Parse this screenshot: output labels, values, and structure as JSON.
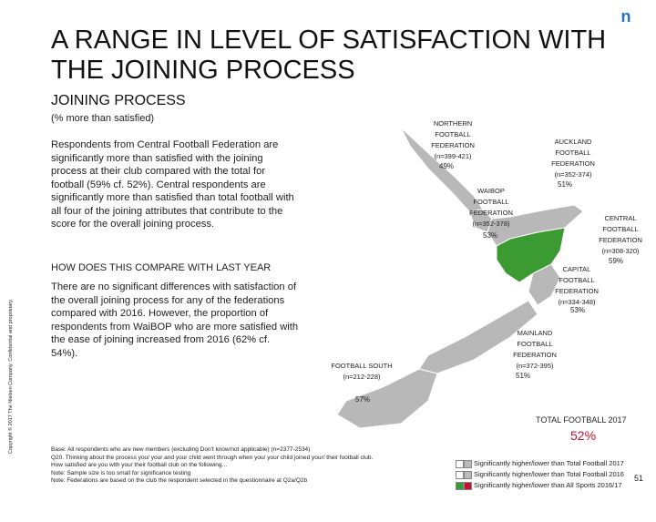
{
  "header": {
    "title": "A RANGE IN LEVEL OF SATISFACTION WITH THE JOINING PROCESS",
    "logo": "n"
  },
  "section": {
    "title": "JOINING PROCESS",
    "subtitle": "(% more than satisfied)",
    "summary": "Respondents from Central Football Federation are significantly more than satisfied with the joining process at their club compared with the total for football (59% cf. 52%). Central respondents are significantly more than satisfied than total football with all four of the joining attributes that contribute to the score for the overall joining process.",
    "compare_heading": "HOW DOES THIS COMPARE WITH LAST YEAR",
    "compare_text": "There are no significant differences with satisfaction of the overall joining process for any of the federations compared with 2016. However, the proportion of respondents from WaiBOP who are more satisfied with the ease of joining increased from 2016 (62% cf. 54%)."
  },
  "regions": [
    {
      "name": "NORTHERN FOOTBALL FEDERATION",
      "n": "(n=399-421)",
      "value": "49%"
    },
    {
      "name": "AUCKLAND FOOTBALL FEDERATION",
      "n": "(n=352-374)",
      "value": "51%"
    },
    {
      "name": "WAIBOP FOOTBALL FEDERATION",
      "n": "(n=352-378)",
      "value": "53%"
    },
    {
      "name": "CENTRAL FOOTBALL FEDERATION",
      "n": "(n=308-320)",
      "value": "59%"
    },
    {
      "name": "CAPITAL FOOTBALL FEDERATION",
      "n": "(n=334-348)",
      "value": "53%"
    },
    {
      "name": "MAINLAND FOOTBALL FEDERATION",
      "n": "(n=372-395)",
      "value": "51%"
    },
    {
      "name": "FOOTBALL SOUTH",
      "n": "(n=212-228)",
      "value": "57%"
    }
  ],
  "total": {
    "label": "TOTAL FOOTBALL 2017",
    "value": "52%"
  },
  "footnotes": [
    "Base: All respondents who are new members (excluding Don't know/not applicable) (n=2377-2534)",
    "Q20. Thinking about the process you/ your and your child went through when you/ your child joined your/ their football club.",
    "How satisfied are you with you/ their football club on the following…",
    "Note: Sample size is too small for significance testing",
    "Note: Federations are based on the club the respondent selected in the questionnaire at Q2a/Q2b"
  ],
  "legend": [
    "Significantly higher/lower than Total Football 2017",
    "Significantly higher/lower than Total Football 2016",
    "Significantly higher/lower than All Sports 2016/17"
  ],
  "page_number": "51",
  "copyright": "Copyright © 2017 The Nielsen Company. Confidential and proprietary."
}
